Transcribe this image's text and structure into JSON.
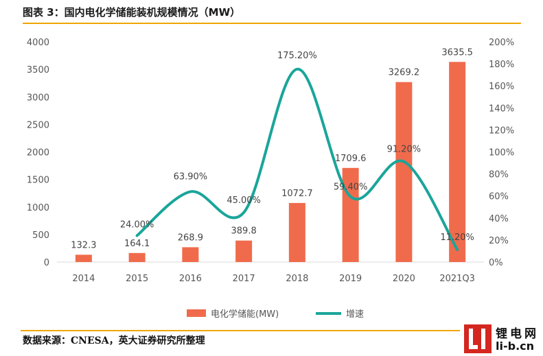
{
  "header": {
    "title": "图表 3：国内电化学储能装机规模情况（MW）"
  },
  "footer": {
    "source": "数据来源：CNESA，英大证券研究所整理"
  },
  "logo": {
    "cn": "锂电网",
    "en": "li-b.cn"
  },
  "colors": {
    "bar": "#f06b4c",
    "line": "#1aa59a",
    "rule": "#f0a500",
    "axis_text": "#555555",
    "axis_line": "#d9d9d9"
  },
  "chart_data": {
    "type": "bar",
    "categories": [
      "2014",
      "2015",
      "2016",
      "2017",
      "2018",
      "2019",
      "2020",
      "2021Q3"
    ],
    "series": [
      {
        "name": "电化学储能(MW)",
        "type": "bar",
        "axis": "left",
        "values": [
          132.3,
          164.1,
          268.9,
          389.8,
          1072.7,
          1709.6,
          3269.2,
          3635.5
        ],
        "labels": [
          "132.3",
          "164.1",
          "268.9",
          "389.8",
          "1072.7",
          "1709.6",
          "3269.2",
          "3635.5"
        ]
      },
      {
        "name": "增速",
        "type": "line",
        "axis": "right",
        "x": [
          "2015",
          "2016",
          "2017",
          "2018",
          "2019",
          "2020",
          "2021Q3"
        ],
        "values": [
          24.0,
          63.9,
          45.0,
          175.2,
          59.4,
          91.2,
          11.2
        ],
        "labels": [
          "24.00%",
          "63.90%",
          "45.00%",
          "175.20%",
          "59.40%",
          "91.20%",
          "11.20%"
        ]
      }
    ],
    "yaxis_left": {
      "min": 0,
      "max": 4000,
      "ticks": [
        "0",
        "500",
        "1000",
        "1500",
        "2000",
        "2500",
        "3000",
        "3500",
        "4000"
      ]
    },
    "yaxis_right": {
      "min": 0,
      "max": 200,
      "ticks": [
        "0%",
        "20%",
        "40%",
        "60%",
        "80%",
        "100%",
        "120%",
        "140%",
        "160%",
        "180%",
        "200%"
      ]
    },
    "grid": false,
    "legend_position": "bottom"
  }
}
